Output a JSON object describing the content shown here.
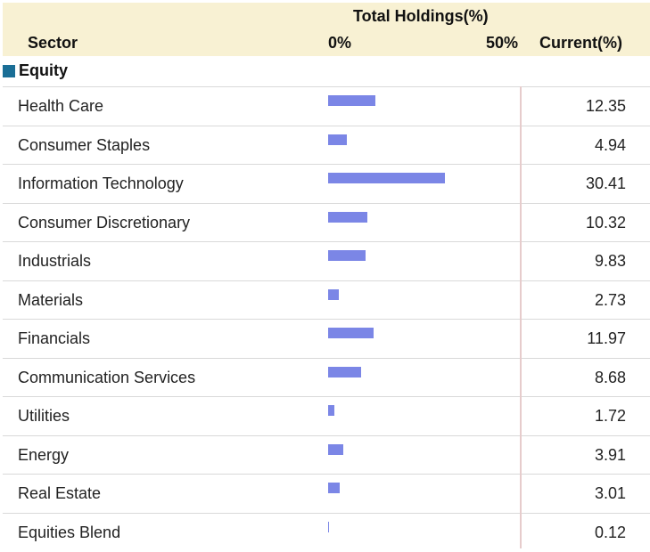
{
  "header": {
    "top_title": "Total Holdings(%)",
    "sector_label": "Sector",
    "axis_min_label": "0%",
    "axis_max_label": "50%",
    "current_label": "Current(%)"
  },
  "group": {
    "label": "Equity",
    "color": "#1a6e96"
  },
  "bar_color": "#7b86e6",
  "chart_data": {
    "type": "bar",
    "orientation": "horizontal",
    "title": "Total Holdings(%)",
    "xlim": [
      0,
      50
    ],
    "categories": [
      "Health Care",
      "Consumer Staples",
      "Information Technology",
      "Consumer Discretionary",
      "Industrials",
      "Materials",
      "Financials",
      "Communication Services",
      "Utilities",
      "Energy",
      "Real Estate",
      "Equities Blend"
    ],
    "values": [
      12.35,
      4.94,
      30.41,
      10.32,
      9.83,
      2.73,
      11.97,
      8.68,
      1.72,
      3.91,
      3.01,
      0.12
    ],
    "value_labels": [
      "12.35",
      "4.94",
      "30.41",
      "10.32",
      "9.83",
      "2.73",
      "11.97",
      "8.68",
      "1.72",
      "3.91",
      "3.01",
      "0.12"
    ]
  }
}
